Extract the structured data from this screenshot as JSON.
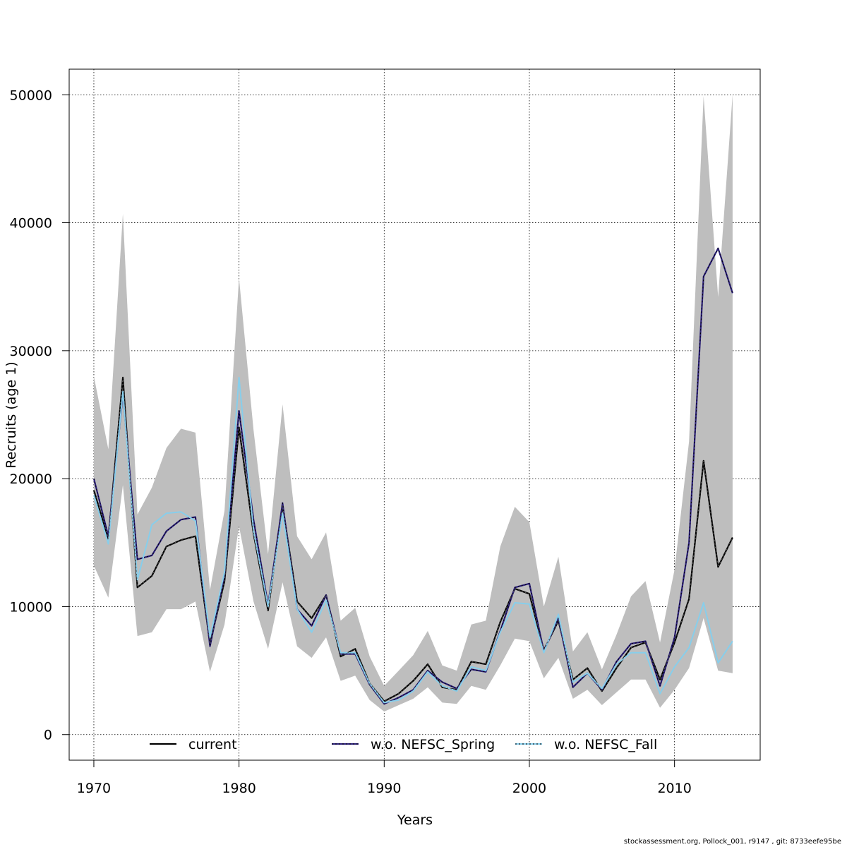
{
  "footer": "stockassessment.org, Pollock_001, r9147 , git: 8733eefe95be",
  "colors": {
    "band": "#bebebe",
    "current": "#000000",
    "spring": "#2b1f7a",
    "fall": "#87ceeb",
    "grid": "#000000"
  },
  "chart_data": {
    "type": "line",
    "xlabel": "Years",
    "ylabel": "Recruits (age 1)",
    "xlim": [
      1968.3,
      2015.9
    ],
    "ylim": [
      -2000,
      52000
    ],
    "x_ticks": [
      1970,
      1980,
      1990,
      2000,
      2010
    ],
    "y_ticks": [
      0,
      10000,
      20000,
      30000,
      40000,
      50000
    ],
    "grid": true,
    "legend_position": "bottom",
    "x": [
      1970,
      1971,
      1972,
      1973,
      1974,
      1975,
      1976,
      1977,
      1978,
      1979,
      1980,
      1981,
      1982,
      1983,
      1984,
      1985,
      1986,
      1987,
      1988,
      1989,
      1990,
      1991,
      1992,
      1993,
      1994,
      1995,
      1996,
      1997,
      1998,
      1999,
      2000,
      2001,
      2002,
      2003,
      2004,
      2005,
      2006,
      2007,
      2008,
      2009,
      2010,
      2011,
      2012,
      2013,
      2014
    ],
    "band_upper": [
      28000,
      22300,
      40700,
      17200,
      19300,
      22400,
      23900,
      23600,
      11300,
      17500,
      35700,
      23800,
      14100,
      25800,
      15500,
      13700,
      15800,
      8900,
      9900,
      6100,
      3800,
      5000,
      6200,
      8100,
      5400,
      5000,
      8600,
      8900,
      14700,
      17800,
      16600,
      10000,
      13900,
      6500,
      8000,
      5100,
      7800,
      10800,
      12000,
      7200,
      12900,
      22900,
      49900,
      34200,
      50000
    ],
    "band_lower": [
      13200,
      10700,
      19500,
      7700,
      8000,
      9800,
      9800,
      10400,
      4900,
      8600,
      16300,
      10400,
      6700,
      11900,
      6900,
      6000,
      7600,
      4200,
      4600,
      2700,
      1800,
      2300,
      2800,
      3700,
      2500,
      2400,
      3800,
      3500,
      5400,
      7500,
      7300,
      4400,
      6000,
      2800,
      3500,
      2300,
      3300,
      4300,
      4300,
      2100,
      3500,
      5200,
      9100,
      5000,
      4800
    ],
    "series": [
      {
        "name": "current",
        "values": [
          19100,
          15300,
          27900,
          11500,
          12400,
          14700,
          15200,
          15500,
          7100,
          12000,
          24000,
          15700,
          9700,
          17900,
          10400,
          9100,
          10900,
          6100,
          6700,
          4000,
          2600,
          3200,
          4200,
          5500,
          3700,
          3500,
          5700,
          5500,
          8800,
          11400,
          11000,
          6600,
          8900,
          4300,
          5200,
          3400,
          5200,
          6800,
          7200,
          4300,
          7200,
          10600,
          21400,
          13100,
          15400
        ]
      },
      {
        "name": "w.o. NEFSC_Spring",
        "values": [
          20000,
          15500,
          26600,
          13700,
          14000,
          15900,
          16800,
          17000,
          6900,
          12500,
          25300,
          16800,
          10100,
          18100,
          9800,
          8500,
          10900,
          6300,
          6300,
          3900,
          2400,
          2900,
          3500,
          5000,
          4100,
          3600,
          5100,
          4900,
          8100,
          11500,
          11800,
          6500,
          9100,
          3700,
          4800,
          3500,
          5700,
          7100,
          7300,
          3800,
          7600,
          15000,
          35800,
          38000,
          34500
        ]
      },
      {
        "name": "w.o. NEFSC_Fall",
        "values": [
          18700,
          14900,
          26800,
          12100,
          16400,
          17300,
          17400,
          16700,
          7600,
          12700,
          27900,
          15900,
          10000,
          17300,
          9800,
          8000,
          10500,
          6400,
          6400,
          4000,
          2500,
          2700,
          3400,
          4900,
          3800,
          3400,
          5300,
          5000,
          8000,
          10300,
          10200,
          6400,
          9400,
          4100,
          4800,
          3600,
          5500,
          6400,
          6400,
          3200,
          5300,
          6800,
          10300,
          5600,
          7300
        ]
      }
    ]
  }
}
